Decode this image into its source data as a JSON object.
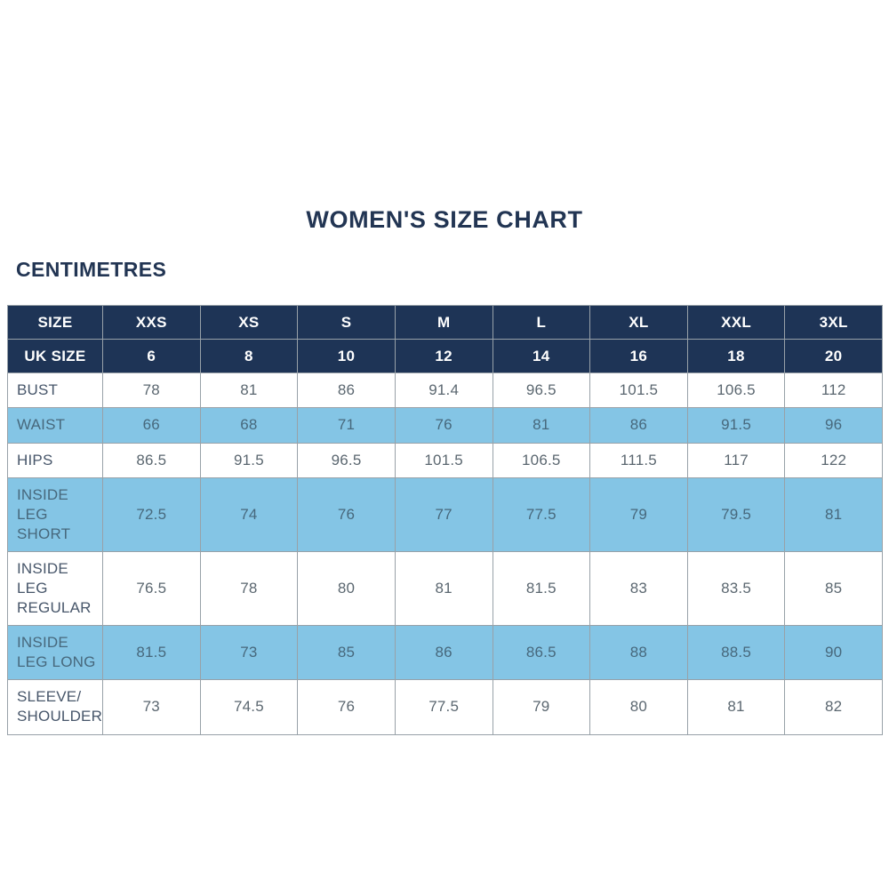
{
  "page": {
    "title": "WOMEN'S SIZE CHART",
    "unit_label": "CENTIMETRES"
  },
  "colors": {
    "navy": "#1E3456",
    "header_text": "#FFFFFF",
    "row_blue": "#84C5E5",
    "row_white": "#FFFFFF",
    "label_text": "#47566A",
    "value_text": "#5B6770",
    "shaded_text": "#47687C",
    "border": "#98A1A8",
    "title_navy": "#223553"
  },
  "chart_data": {
    "type": "table",
    "title": "WOMEN'S SIZE CHART",
    "unit": "CENTIMETRES",
    "columns": [
      "SIZE",
      "XXS",
      "XS",
      "S",
      "M",
      "L",
      "XL",
      "XXL",
      "3XL"
    ],
    "uk_size_row": {
      "label": "UK SIZE",
      "values": [
        "6",
        "8",
        "10",
        "12",
        "14",
        "16",
        "18",
        "20"
      ]
    },
    "rows": [
      {
        "label": "BUST",
        "shaded": false,
        "values": [
          "78",
          "81",
          "86",
          "91.4",
          "96.5",
          "101.5",
          "106.5",
          "112"
        ]
      },
      {
        "label": "WAIST",
        "shaded": true,
        "values": [
          "66",
          "68",
          "71",
          "76",
          "81",
          "86",
          "91.5",
          "96"
        ]
      },
      {
        "label": "HIPS",
        "shaded": false,
        "values": [
          "86.5",
          "91.5",
          "96.5",
          "101.5",
          "106.5",
          "111.5",
          "117",
          "122"
        ]
      },
      {
        "label": "INSIDE LEG SHORT",
        "shaded": true,
        "values": [
          "72.5",
          "74",
          "76",
          "77",
          "77.5",
          "79",
          "79.5",
          "81"
        ]
      },
      {
        "label": "INSIDE LEG REGULAR",
        "shaded": false,
        "values": [
          "76.5",
          "78",
          "80",
          "81",
          "81.5",
          "83",
          "83.5",
          "85"
        ]
      },
      {
        "label": "INSIDE LEG LONG",
        "shaded": true,
        "values": [
          "81.5",
          "73",
          "85",
          "86",
          "86.5",
          "88",
          "88.5",
          "90"
        ]
      },
      {
        "label": "SLEEVE/ SHOULDER",
        "shaded": false,
        "values": [
          "73",
          "74.5",
          "76",
          "77.5",
          "79",
          "80",
          "81",
          "82"
        ]
      }
    ]
  }
}
